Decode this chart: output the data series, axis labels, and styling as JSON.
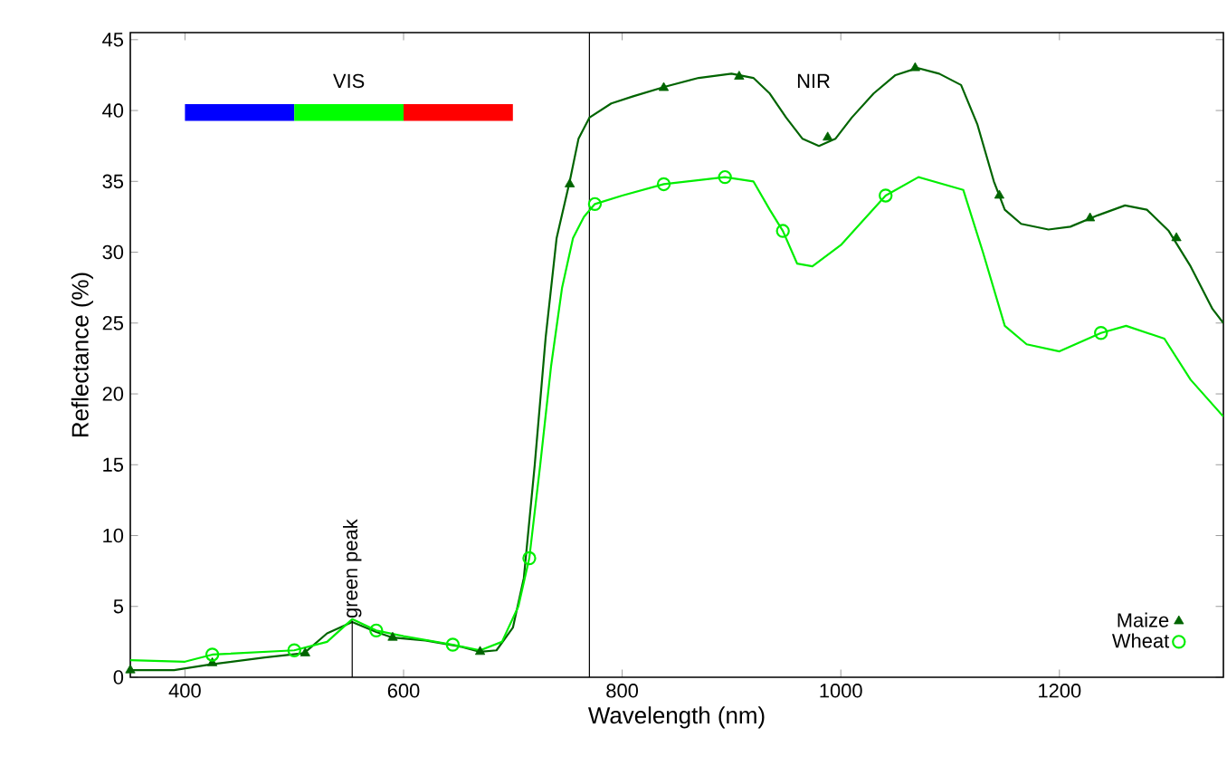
{
  "chart_data": {
    "type": "line",
    "xlabel": "Wavelength (nm)",
    "ylabel": "Reflectance (%)",
    "xlim": [
      350,
      1350
    ],
    "ylim": [
      0,
      45.5
    ],
    "xticks": [
      400,
      600,
      800,
      1000,
      1200
    ],
    "yticks": [
      0,
      5,
      10,
      15,
      20,
      25,
      30,
      35,
      40,
      45
    ],
    "legend": "bottom right",
    "grid": false,
    "series": [
      {
        "color": "#006400",
        "x": [
          350,
          390,
          423,
          473,
          509,
          530,
          553,
          575,
          590,
          620,
          650,
          670,
          685,
          700,
          710,
          720,
          730,
          740,
          752,
          760,
          770,
          790,
          810,
          840,
          870,
          900,
          920,
          935,
          950,
          965,
          980,
          995,
          1010,
          1030,
          1050,
          1070,
          1090,
          1110,
          1125,
          1140,
          1150,
          1165,
          1190,
          1210,
          1235,
          1260,
          1280,
          1300,
          1320,
          1340,
          1350
        ],
        "values": [
          0.5,
          0.5,
          0.9,
          1.4,
          1.7,
          3.1,
          3.9,
          3.2,
          2.8,
          2.6,
          2.2,
          1.8,
          1.9,
          3.5,
          7,
          15,
          24,
          31,
          35,
          38,
          39.5,
          40.5,
          41,
          41.7,
          42.3,
          42.6,
          42.3,
          41.2,
          39.5,
          38,
          37.5,
          38,
          39.5,
          41.2,
          42.5,
          43,
          42.6,
          41.8,
          39,
          35,
          33,
          32,
          31.6,
          31.8,
          32.6,
          33.3,
          33,
          31.5,
          29,
          26,
          25
        ]
      },
      {
        "color": "#00ee00",
        "x": [
          350,
          400,
          425,
          500,
          530,
          553,
          575,
          600,
          645,
          670,
          690,
          705,
          715,
          725,
          735,
          745,
          755,
          765,
          775,
          800,
          838,
          894,
          920,
          935,
          947,
          960,
          974,
          1000,
          1041,
          1071,
          1112,
          1130,
          1150,
          1170,
          1200,
          1238,
          1261,
          1296,
          1320,
          1350
        ],
        "values": [
          1.2,
          1.1,
          1.6,
          1.9,
          2.5,
          4.1,
          3.3,
          2.9,
          2.3,
          1.9,
          2.5,
          5,
          8.4,
          15,
          22,
          27.5,
          31,
          32.5,
          33.4,
          34,
          34.8,
          35.3,
          35,
          33,
          31.5,
          29.2,
          29,
          30.5,
          34,
          35.3,
          34.4,
          30,
          24.8,
          23.5,
          23,
          24.3,
          24.8,
          23.9,
          21,
          18.4
        ]
      },
      {
        "type": "scatter",
        "name": "Maize",
        "color": "#006400",
        "marker": "triangle",
        "x": [
          350,
          425,
          510,
          590,
          670,
          752,
          838,
          907,
          988,
          1068,
          1145,
          1228,
          1307
        ],
        "values": [
          0.5,
          1.0,
          1.7,
          2.8,
          1.8,
          34.8,
          41.6,
          42.4,
          38.1,
          43,
          34.0,
          32.4,
          31.0
        ]
      },
      {
        "type": "scatter",
        "name": "Wheat",
        "color": "#00ee00",
        "marker": "circle",
        "x": [
          425,
          500,
          575,
          645,
          715,
          775,
          838,
          894,
          947,
          1041,
          1238
        ],
        "values": [
          1.6,
          1.9,
          3.3,
          2.3,
          8.4,
          33.4,
          34.8,
          35.3,
          31.5,
          34.0,
          24.3
        ]
      }
    ],
    "ref_lines": [
      {
        "axis": "x",
        "value": 770
      }
    ],
    "annotations": [
      "VIS",
      "NIR",
      {
        "text": "green peak",
        "x": 553,
        "y": 4
      }
    ]
  }
}
